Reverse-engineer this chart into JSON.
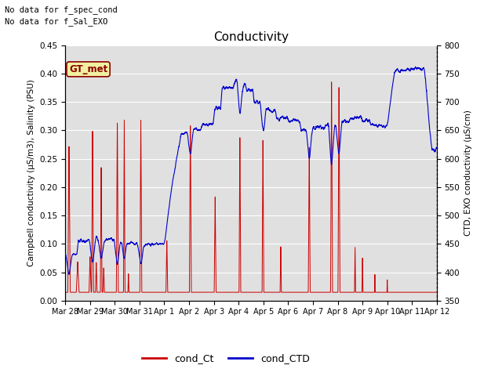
{
  "title": "Conductivity",
  "ylabel_left": "Campbell conductivity (μS/m3), Salinity (PSU)",
  "ylabel_right": "CTD, EXO conductivity (μS/cm)",
  "ylim_left": [
    0.0,
    0.45
  ],
  "ylim_right": [
    350,
    800
  ],
  "yticks_left": [
    0.0,
    0.05,
    0.1,
    0.15,
    0.2,
    0.25,
    0.3,
    0.35,
    0.4,
    0.45
  ],
  "yticks_right": [
    350,
    400,
    450,
    500,
    550,
    600,
    650,
    700,
    750,
    800
  ],
  "xtick_labels": [
    "Mar 28",
    "Mar 29",
    "Mar 30",
    "Mar 31",
    "Apr 1",
    "Apr 2",
    "Apr 3",
    "Apr 4",
    "Apr 5",
    "Apr 6",
    "Apr 7",
    "Apr 8",
    "Apr 9",
    "Apr 10",
    "Apr 11",
    "Apr 12"
  ],
  "color_red": "#cc0000",
  "color_blue": "#0000cc",
  "legend_labels": [
    "cond_Ct",
    "cond_CTD"
  ],
  "text_no_data_1": "No data for f_spec_cond",
  "text_no_data_2": "No data for f_Sal_EXO",
  "annotation_gt_met": "GT_met",
  "background_color": "#e0e0e0",
  "grid_color": "#ffffff",
  "fig_background": "#ffffff"
}
